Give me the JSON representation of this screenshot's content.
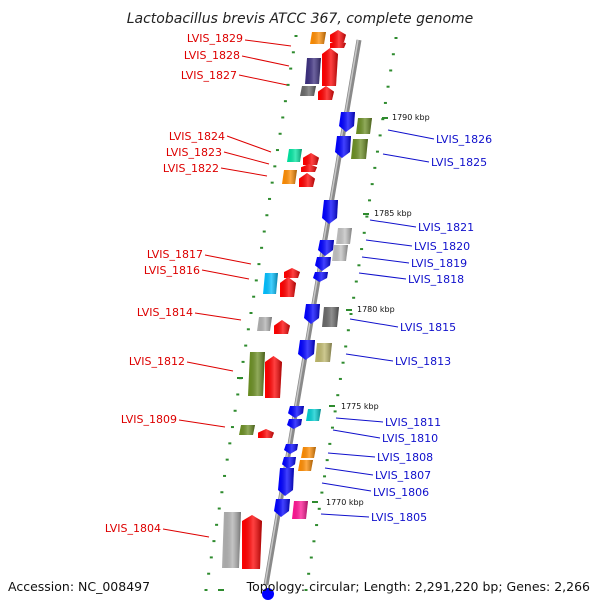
{
  "title": "Lactobacillus brevis ATCC 367, complete genome",
  "footer": {
    "accession": "Accession: NC_008497",
    "topology": "Topology: circular; Length: 2,291,220 bp; Genes: 2,266"
  },
  "colors": {
    "left_label": "#dd0000",
    "right_label": "#1010cc",
    "backbone": "#909090",
    "tick": "#2e8b2e"
  },
  "scale_labels": [
    "1790 kbp",
    "1785 kbp",
    "1780 kbp",
    "1775 kbp",
    "1770 kbp"
  ],
  "left_genes": [
    {
      "label": "LVIS_1829",
      "color": "#ff8c00"
    },
    {
      "label": "LVIS_1828",
      "color": "#3b2e7e"
    },
    {
      "label": "LVIS_1827",
      "color": "#696969"
    },
    {
      "label": "LVIS_1824",
      "color": "#00e5a0"
    },
    {
      "label": "LVIS_1823",
      "color": "#ff0000"
    },
    {
      "label": "LVIS_1822",
      "color": "#ff8c00"
    },
    {
      "label": "LVIS_1817",
      "color": "#ff0000"
    },
    {
      "label": "LVIS_1816",
      "color": "#00bfff"
    },
    {
      "label": "LVIS_1814",
      "color": "#b0b0b0"
    },
    {
      "label": "LVIS_1812",
      "color": "#6b8e23"
    },
    {
      "label": "LVIS_1809",
      "color": "#6b8e23"
    },
    {
      "label": "LVIS_1804",
      "color": "#b0b0b0"
    }
  ],
  "right_genes": [
    {
      "label": "LVIS_1826",
      "color": "#6b8e23"
    },
    {
      "label": "LVIS_1825",
      "color": "#6b8e23"
    },
    {
      "label": "LVIS_1821",
      "color": "#0000ff"
    },
    {
      "label": "LVIS_1820",
      "color": "#c0c0c0"
    },
    {
      "label": "LVIS_1819",
      "color": "#0000ff"
    },
    {
      "label": "LVIS_1818",
      "color": "#0000ff"
    },
    {
      "label": "LVIS_1815",
      "color": "#696969"
    },
    {
      "label": "LVIS_1813",
      "color": "#bdb76b"
    },
    {
      "label": "LVIS_1811",
      "color": "#00ced1"
    },
    {
      "label": "LVIS_1810",
      "color": "#0000ff"
    },
    {
      "label": "LVIS_1808",
      "color": "#ff8c00"
    },
    {
      "label": "LVIS_1807",
      "color": "#ff8c00"
    },
    {
      "label": "LVIS_1806",
      "color": "#0000ff"
    },
    {
      "label": "LVIS_1805",
      "color": "#ff1493"
    }
  ]
}
